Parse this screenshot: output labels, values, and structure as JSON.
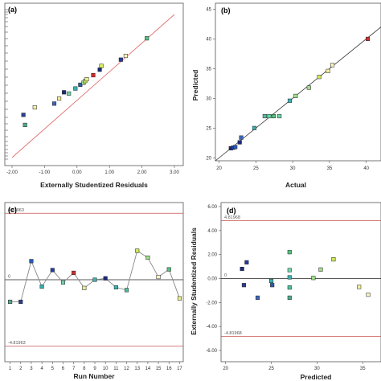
{
  "chart_data": [
    {
      "panel": "(a)",
      "type": "scatter",
      "xlabel": "Externally Studentized Residuals",
      "ylabel": "",
      "xlim": [
        -2.0,
        3.0
      ],
      "xticks": [
        "-2.00",
        "-1.00",
        "0.00",
        "1.00",
        "2.00",
        "3.00"
      ],
      "reference_line": {
        "from": [
          -2.0,
          -2.9
        ],
        "to": [
          3.0,
          2.8
        ],
        "color": "#e07070"
      },
      "points": [
        {
          "x": -1.6,
          "y": -1.6,
          "color": "#4fa88c"
        },
        {
          "x": -1.65,
          "y": -1.2,
          "color": "#2c3f8f"
        },
        {
          "x": -1.3,
          "y": -0.9,
          "color": "#f4f0a8"
        },
        {
          "x": -0.7,
          "y": -0.75,
          "color": "#3a66b8"
        },
        {
          "x": -0.55,
          "y": -0.55,
          "color": "#f2ec9c"
        },
        {
          "x": -0.4,
          "y": -0.3,
          "color": "#1a2a7a"
        },
        {
          "x": -0.25,
          "y": -0.35,
          "color": "#6fd4a8"
        },
        {
          "x": -0.05,
          "y": -0.15,
          "color": "#3ab0b0"
        },
        {
          "x": 0.1,
          "y": 0.0,
          "color": "#2a5ab0"
        },
        {
          "x": 0.2,
          "y": 0.08,
          "color": "#9fdc8a"
        },
        {
          "x": 0.25,
          "y": 0.15,
          "color": "#cce860"
        },
        {
          "x": 0.3,
          "y": 0.22,
          "color": "#e8ee90"
        },
        {
          "x": 0.5,
          "y": 0.38,
          "color": "#c83030"
        },
        {
          "x": 0.7,
          "y": 0.6,
          "color": "#1a2a7a"
        },
        {
          "x": 0.75,
          "y": 0.75,
          "color": "#d6ee60"
        },
        {
          "x": 1.35,
          "y": 1.0,
          "color": "#1f3aa0"
        },
        {
          "x": 1.5,
          "y": 1.15,
          "color": "#f6f2c0"
        },
        {
          "x": 2.15,
          "y": 1.85,
          "color": "#55c080"
        }
      ]
    },
    {
      "panel": "(b)",
      "type": "scatter",
      "xlabel": "Actual",
      "ylabel": "Predicted",
      "xlim": [
        19.5,
        42
      ],
      "ylim": [
        19.5,
        46
      ],
      "xticks": [
        "20",
        "25",
        "30",
        "35",
        "40"
      ],
      "yticks": [
        "20",
        "25",
        "30",
        "35",
        "40",
        "45"
      ],
      "reference_line": {
        "from": [
          19.5,
          19.5
        ],
        "to": [
          42,
          42
        ],
        "color": "#333333"
      },
      "points": [
        {
          "x": 21.6,
          "y": 21.6,
          "color": "#1a2a7a"
        },
        {
          "x": 21.9,
          "y": 21.7,
          "color": "#1f3aa0"
        },
        {
          "x": 22.2,
          "y": 21.8,
          "color": "#2a5ab0"
        },
        {
          "x": 22.8,
          "y": 22.6,
          "color": "#1a2a7a"
        },
        {
          "x": 23.0,
          "y": 23.4,
          "color": "#3a66b8"
        },
        {
          "x": 24.8,
          "y": 25.0,
          "color": "#3ab0b0"
        },
        {
          "x": 26.2,
          "y": 27.0,
          "color": "#4fc0a0"
        },
        {
          "x": 26.8,
          "y": 27.0,
          "color": "#6fd4a8"
        },
        {
          "x": 27.4,
          "y": 27.0,
          "color": "#55c080"
        },
        {
          "x": 28.2,
          "y": 27.0,
          "color": "#6fd4a8"
        },
        {
          "x": 29.6,
          "y": 29.6,
          "color": "#3ab0b0"
        },
        {
          "x": 30.4,
          "y": 30.4,
          "color": "#9fdc8a"
        },
        {
          "x": 32.2,
          "y": 31.8,
          "color": "#9fdc8a"
        },
        {
          "x": 33.6,
          "y": 33.6,
          "color": "#cce860"
        },
        {
          "x": 34.8,
          "y": 34.6,
          "color": "#f2ec9c"
        },
        {
          "x": 35.4,
          "y": 35.6,
          "color": "#f6f2c0"
        },
        {
          "x": 40.2,
          "y": 40.0,
          "color": "#c83030"
        }
      ]
    },
    {
      "panel": "(c)",
      "type": "line",
      "xlabel": "Run Number",
      "ylabel": "",
      "xlim": [
        0.5,
        17.5
      ],
      "ylim": [
        -6.0,
        6.0
      ],
      "xticks": [
        "1",
        "2",
        "3",
        "4",
        "5",
        "6",
        "7",
        "8",
        "9",
        "10",
        "11",
        "12",
        "13",
        "14",
        "15",
        "16",
        "17"
      ],
      "limits": {
        "upper": "4.81963",
        "zero": "0",
        "lower": "-4.81963"
      },
      "limit_values": [
        4.81963,
        0,
        -4.81963
      ],
      "x": [
        1,
        2,
        3,
        4,
        5,
        6,
        7,
        8,
        9,
        10,
        11,
        12,
        13,
        14,
        15,
        16,
        17
      ],
      "values": [
        -1.6,
        -1.6,
        1.35,
        -0.5,
        0.7,
        -0.2,
        0.5,
        -0.6,
        0.0,
        0.1,
        -0.55,
        -0.75,
        2.1,
        1.6,
        0.2,
        0.75,
        -1.35
      ],
      "colors": [
        "#4fa88c",
        "#2c3f8f",
        "#2a5ab0",
        "#3ab0b0",
        "#1f3aa0",
        "#6fd4a8",
        "#c83030",
        "#e8ee90",
        "#3ab0b0",
        "#1a2a7a",
        "#3ab0b0",
        "#4fc0a0",
        "#cce860",
        "#9fdc8a",
        "#f6f2c0",
        "#55c080",
        "#e8ee90"
      ]
    },
    {
      "panel": "(d)",
      "type": "scatter",
      "xlabel": "Predicted",
      "ylabel": "Externally Studentized Residuals",
      "xlim": [
        19.5,
        37
      ],
      "ylim": [
        -6.0,
        6.0
      ],
      "xticks": [
        "20",
        "25",
        "30",
        "35"
      ],
      "yticks": [
        "6.00",
        "4.00",
        "2.00",
        "0.00",
        "-2.00",
        "-4.00",
        "-6.00"
      ],
      "limits": {
        "upper": "4.81968",
        "zero": "0",
        "lower": "-4.81968"
      },
      "limit_values": [
        4.81968,
        0,
        -4.81968
      ],
      "points": [
        {
          "x": 21.8,
          "y": 0.8,
          "color": "#1a2a7a"
        },
        {
          "x": 22.0,
          "y": -0.55,
          "color": "#2c3f8f"
        },
        {
          "x": 22.3,
          "y": 1.35,
          "color": "#1f3aa0"
        },
        {
          "x": 23.5,
          "y": -1.6,
          "color": "#3a66b8"
        },
        {
          "x": 25.0,
          "y": -0.2,
          "color": "#3ab0b0"
        },
        {
          "x": 25.1,
          "y": -0.55,
          "color": "#2a5ab0"
        },
        {
          "x": 27.0,
          "y": -1.6,
          "color": "#4fa88c"
        },
        {
          "x": 27.0,
          "y": -0.75,
          "color": "#4fc0a0"
        },
        {
          "x": 27.0,
          "y": 0.1,
          "color": "#3ab0b0"
        },
        {
          "x": 27.0,
          "y": 0.7,
          "color": "#6fd4a8"
        },
        {
          "x": 27.0,
          "y": 2.2,
          "color": "#55c080"
        },
        {
          "x": 29.6,
          "y": 0.05,
          "color": "#9fdc8a"
        },
        {
          "x": 30.4,
          "y": 0.75,
          "color": "#9fdc8a"
        },
        {
          "x": 31.8,
          "y": 1.6,
          "color": "#cce860"
        },
        {
          "x": 34.6,
          "y": -0.7,
          "color": "#f2ec9c"
        },
        {
          "x": 35.6,
          "y": -1.35,
          "color": "#f6f2c0"
        }
      ]
    }
  ]
}
